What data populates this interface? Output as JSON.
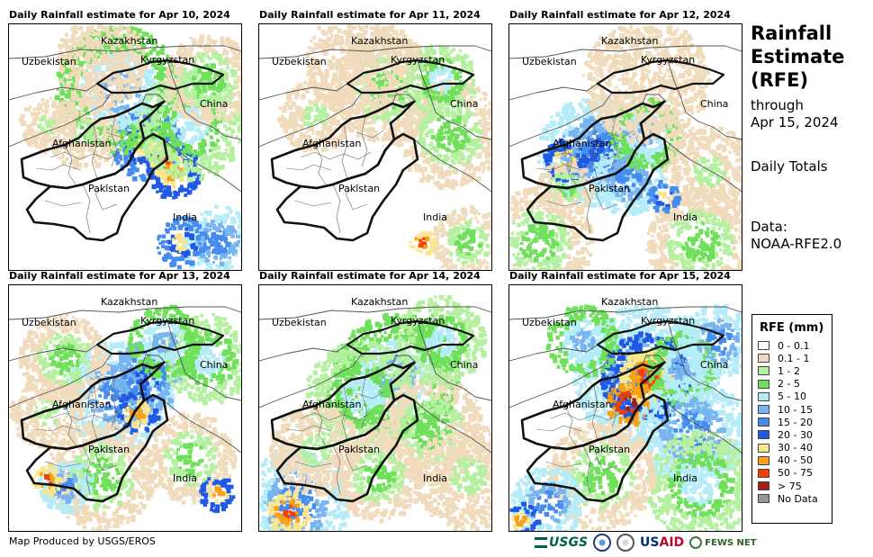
{
  "panels": [
    {
      "title": "Daily Rainfall estimate for Apr 10, 2024",
      "intensity": "light-east"
    },
    {
      "title": "Daily Rainfall estimate for Apr 11, 2024",
      "intensity": "very-light"
    },
    {
      "title": "Daily Rainfall estimate for Apr 12, 2024",
      "intensity": "heavy-afghanistan"
    },
    {
      "title": "Daily Rainfall estimate for Apr 13, 2024",
      "intensity": "moderate-band"
    },
    {
      "title": "Daily Rainfall estimate for Apr 14, 2024",
      "intensity": "moderate-south"
    },
    {
      "title": "Daily Rainfall estimate for Apr 15, 2024",
      "intensity": "heavy-northeast"
    }
  ],
  "map_labels": {
    "kazakhstan": "Kazakhstan",
    "uzbekistan": "Uzbekistan",
    "kyrgyzstan": "Kyrgyzstan",
    "china": "China",
    "afghanistan": "Afghanistan",
    "pakistan": "Pakistan",
    "india": "India"
  },
  "sidebar": {
    "title_line1": "Rainfall",
    "title_line2": "Estimate",
    "title_line3": "(RFE)",
    "through_label": "through",
    "through_date": "Apr 15, 2024",
    "totals_label": "Daily Totals",
    "data_label": "Data:",
    "data_source": "NOAA-RFE2.0"
  },
  "legend": {
    "title": "RFE (mm)",
    "items": [
      {
        "label": "0 - 0.1",
        "color": "#ffffff"
      },
      {
        "label": "0.1 - 1",
        "color": "#f0dcbc"
      },
      {
        "label": "1 - 2",
        "color": "#b4f0a0"
      },
      {
        "label": "2 - 5",
        "color": "#6ee05a"
      },
      {
        "label": "5 - 10",
        "color": "#b4ecf8"
      },
      {
        "label": "10 - 15",
        "color": "#78b4f0"
      },
      {
        "label": "15 - 20",
        "color": "#468cf0"
      },
      {
        "label": "20 - 30",
        "color": "#1e5ae6"
      },
      {
        "label": "30 - 40",
        "color": "#fae68c"
      },
      {
        "label": "40 - 50",
        "color": "#faa014"
      },
      {
        "label": "50 - 75",
        "color": "#fa3c00"
      },
      {
        "label": "> 75",
        "color": "#a01e1e"
      },
      {
        "label": "No Data",
        "color": "#969696"
      }
    ]
  },
  "footer": {
    "credit": "Map Produced by USGS/EROS",
    "logo_usgs": "USGS",
    "logo_usaid_a": "US",
    "logo_usaid_b": "AID",
    "logo_fews": "FEWS NET"
  }
}
